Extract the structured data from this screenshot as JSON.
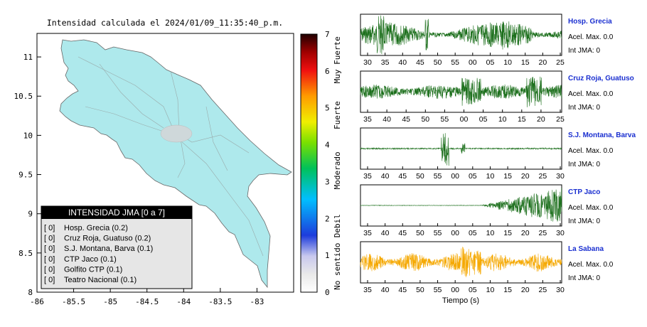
{
  "map": {
    "title": "Intensidad calculada el 2024/01/09_11:35:40_p.m.",
    "xticks": [
      "-86",
      "-85.5",
      "-85",
      "-84.5",
      "-84",
      "-83.5",
      "-83"
    ],
    "yticks": [
      "11",
      "10.5",
      "10",
      "9.5",
      "9",
      "8.5",
      "8"
    ],
    "xlim": [
      -86,
      -82.5
    ],
    "ylim": [
      8,
      11.3
    ],
    "land_color": "#aee9ec"
  },
  "legend": {
    "title": "INTENSIDAD JMA [0 a 7]",
    "stations": [
      {
        "bracket": "[ 0]",
        "label": "Hosp. Grecia (0.2)"
      },
      {
        "bracket": "[ 0]",
        "label": "Cruz Roja, Guatuso (0.2)"
      },
      {
        "bracket": "[ 0]",
        "label": "S.J. Montana, Barva (0.1)"
      },
      {
        "bracket": "[ 0]",
        "label": "CTP Jaco (0.1)"
      },
      {
        "bracket": "[ 0]",
        "label": "Golfito CTP (0.1)"
      },
      {
        "bracket": "[ 0]",
        "label": "Teatro Nacional (0.1)"
      }
    ]
  },
  "colorbar": {
    "ticks": [
      "7",
      "6",
      "5",
      "4",
      "3",
      "2",
      "1",
      "0"
    ],
    "categories": [
      "Muy Fuerte",
      "Fuerte",
      "Moderado",
      "Debil",
      "No sentido"
    ]
  },
  "chart_data": [
    {
      "type": "line",
      "station": "Hosp. Grecia",
      "accel_label": "Acel. Max. 0.0",
      "int_label": "Int JMA: 0",
      "color": "#1a6e1a",
      "xticks": [
        "30",
        "35",
        "40",
        "45",
        "50",
        "55",
        "00",
        "05",
        "10",
        "15",
        "20",
        "25"
      ]
    },
    {
      "type": "line",
      "station": "Cruz Roja, Guatuso",
      "accel_label": "Acel. Max. 0.0",
      "int_label": "Int JMA: 0",
      "color": "#1a6e1a",
      "xticks": [
        "35",
        "40",
        "45",
        "50",
        "55",
        "00",
        "05",
        "10",
        "15",
        "20",
        "25"
      ]
    },
    {
      "type": "line",
      "station": "S.J. Montana, Barva",
      "accel_label": "Acel. Max. 0.0",
      "int_label": "Int JMA: 0",
      "color": "#1a6e1a",
      "xticks": [
        "35",
        "40",
        "45",
        "50",
        "55",
        "00",
        "05",
        "10",
        "15",
        "20",
        "25",
        "30"
      ]
    },
    {
      "type": "line",
      "station": "CTP Jaco",
      "accel_label": "Acel. Max. 0.0",
      "int_label": "Int JMA: 0",
      "color": "#1a6e1a",
      "xticks": [
        "35",
        "40",
        "45",
        "50",
        "55",
        "00",
        "05",
        "10",
        "15",
        "20",
        "25",
        "30"
      ]
    },
    {
      "type": "line",
      "station": "La Sabana",
      "accel_label": "Acel. Max. 0.0",
      "int_label": "Int JMA: 0",
      "color": "#f5a800",
      "xticks": [
        "35",
        "40",
        "45",
        "50",
        "55",
        "00",
        "05",
        "10",
        "15",
        "20",
        "25",
        "30"
      ],
      "xlabel": "Tiempo (s)"
    }
  ]
}
